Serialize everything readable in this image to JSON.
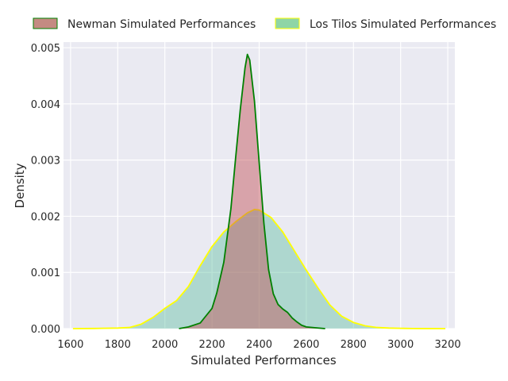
{
  "chart_data": {
    "type": "area",
    "subtype": "kde-density",
    "title": "",
    "xlabel": "Simulated Performances",
    "ylabel": "Density",
    "xlim": [
      1570,
      3230
    ],
    "ylim": [
      0,
      0.0051
    ],
    "xticks": [
      1600,
      1800,
      2000,
      2200,
      2400,
      2600,
      2800,
      3000,
      3200
    ],
    "yticks": [
      "0.000",
      "0.001",
      "0.002",
      "0.003",
      "0.004",
      "0.005"
    ],
    "ytick_values": [
      0,
      0.001,
      0.002,
      0.003,
      0.004,
      0.005
    ],
    "grid": true,
    "legend_position": "top",
    "series": [
      {
        "name": "Los Tilos Simulated Performances",
        "fill_color": "#66c2a5",
        "line_color": "#ffff00",
        "x": [
          1610,
          1700,
          1800,
          1850,
          1900,
          1950,
          2000,
          2050,
          2100,
          2150,
          2200,
          2250,
          2300,
          2350,
          2380,
          2400,
          2450,
          2500,
          2550,
          2600,
          2650,
          2700,
          2750,
          2800,
          2850,
          2900,
          2950,
          3000,
          3050,
          3100,
          3190
        ],
        "y": [
          0,
          3e-06,
          1e-05,
          2e-05,
          8e-05,
          0.0002,
          0.00036,
          0.0005,
          0.00075,
          0.00112,
          0.00146,
          0.00172,
          0.0019,
          0.00206,
          0.00212,
          0.00211,
          0.00198,
          0.00172,
          0.00138,
          0.00104,
          0.00072,
          0.00042,
          0.00022,
          0.00011,
          5e-05,
          2e-05,
          1e-05,
          5e-06,
          2e-06,
          1e-06,
          0
        ]
      },
      {
        "name": "Newman Simulated Performances",
        "fill_color": "#c44e52",
        "line_color": "#008000",
        "x": [
          2060,
          2100,
          2150,
          2200,
          2220,
          2250,
          2280,
          2300,
          2320,
          2340,
          2350,
          2360,
          2380,
          2400,
          2420,
          2440,
          2460,
          2480,
          2500,
          2520,
          2540,
          2560,
          2580,
          2600,
          2650,
          2680
        ],
        "y": [
          0,
          3e-05,
          0.0001,
          0.00036,
          0.00063,
          0.00118,
          0.00213,
          0.00303,
          0.0039,
          0.00464,
          0.00488,
          0.00478,
          0.00405,
          0.00296,
          0.00188,
          0.00105,
          0.00062,
          0.00043,
          0.00035,
          0.00029,
          0.00019,
          0.00012,
          6e-05,
          3e-05,
          1e-05,
          0
        ]
      }
    ]
  }
}
